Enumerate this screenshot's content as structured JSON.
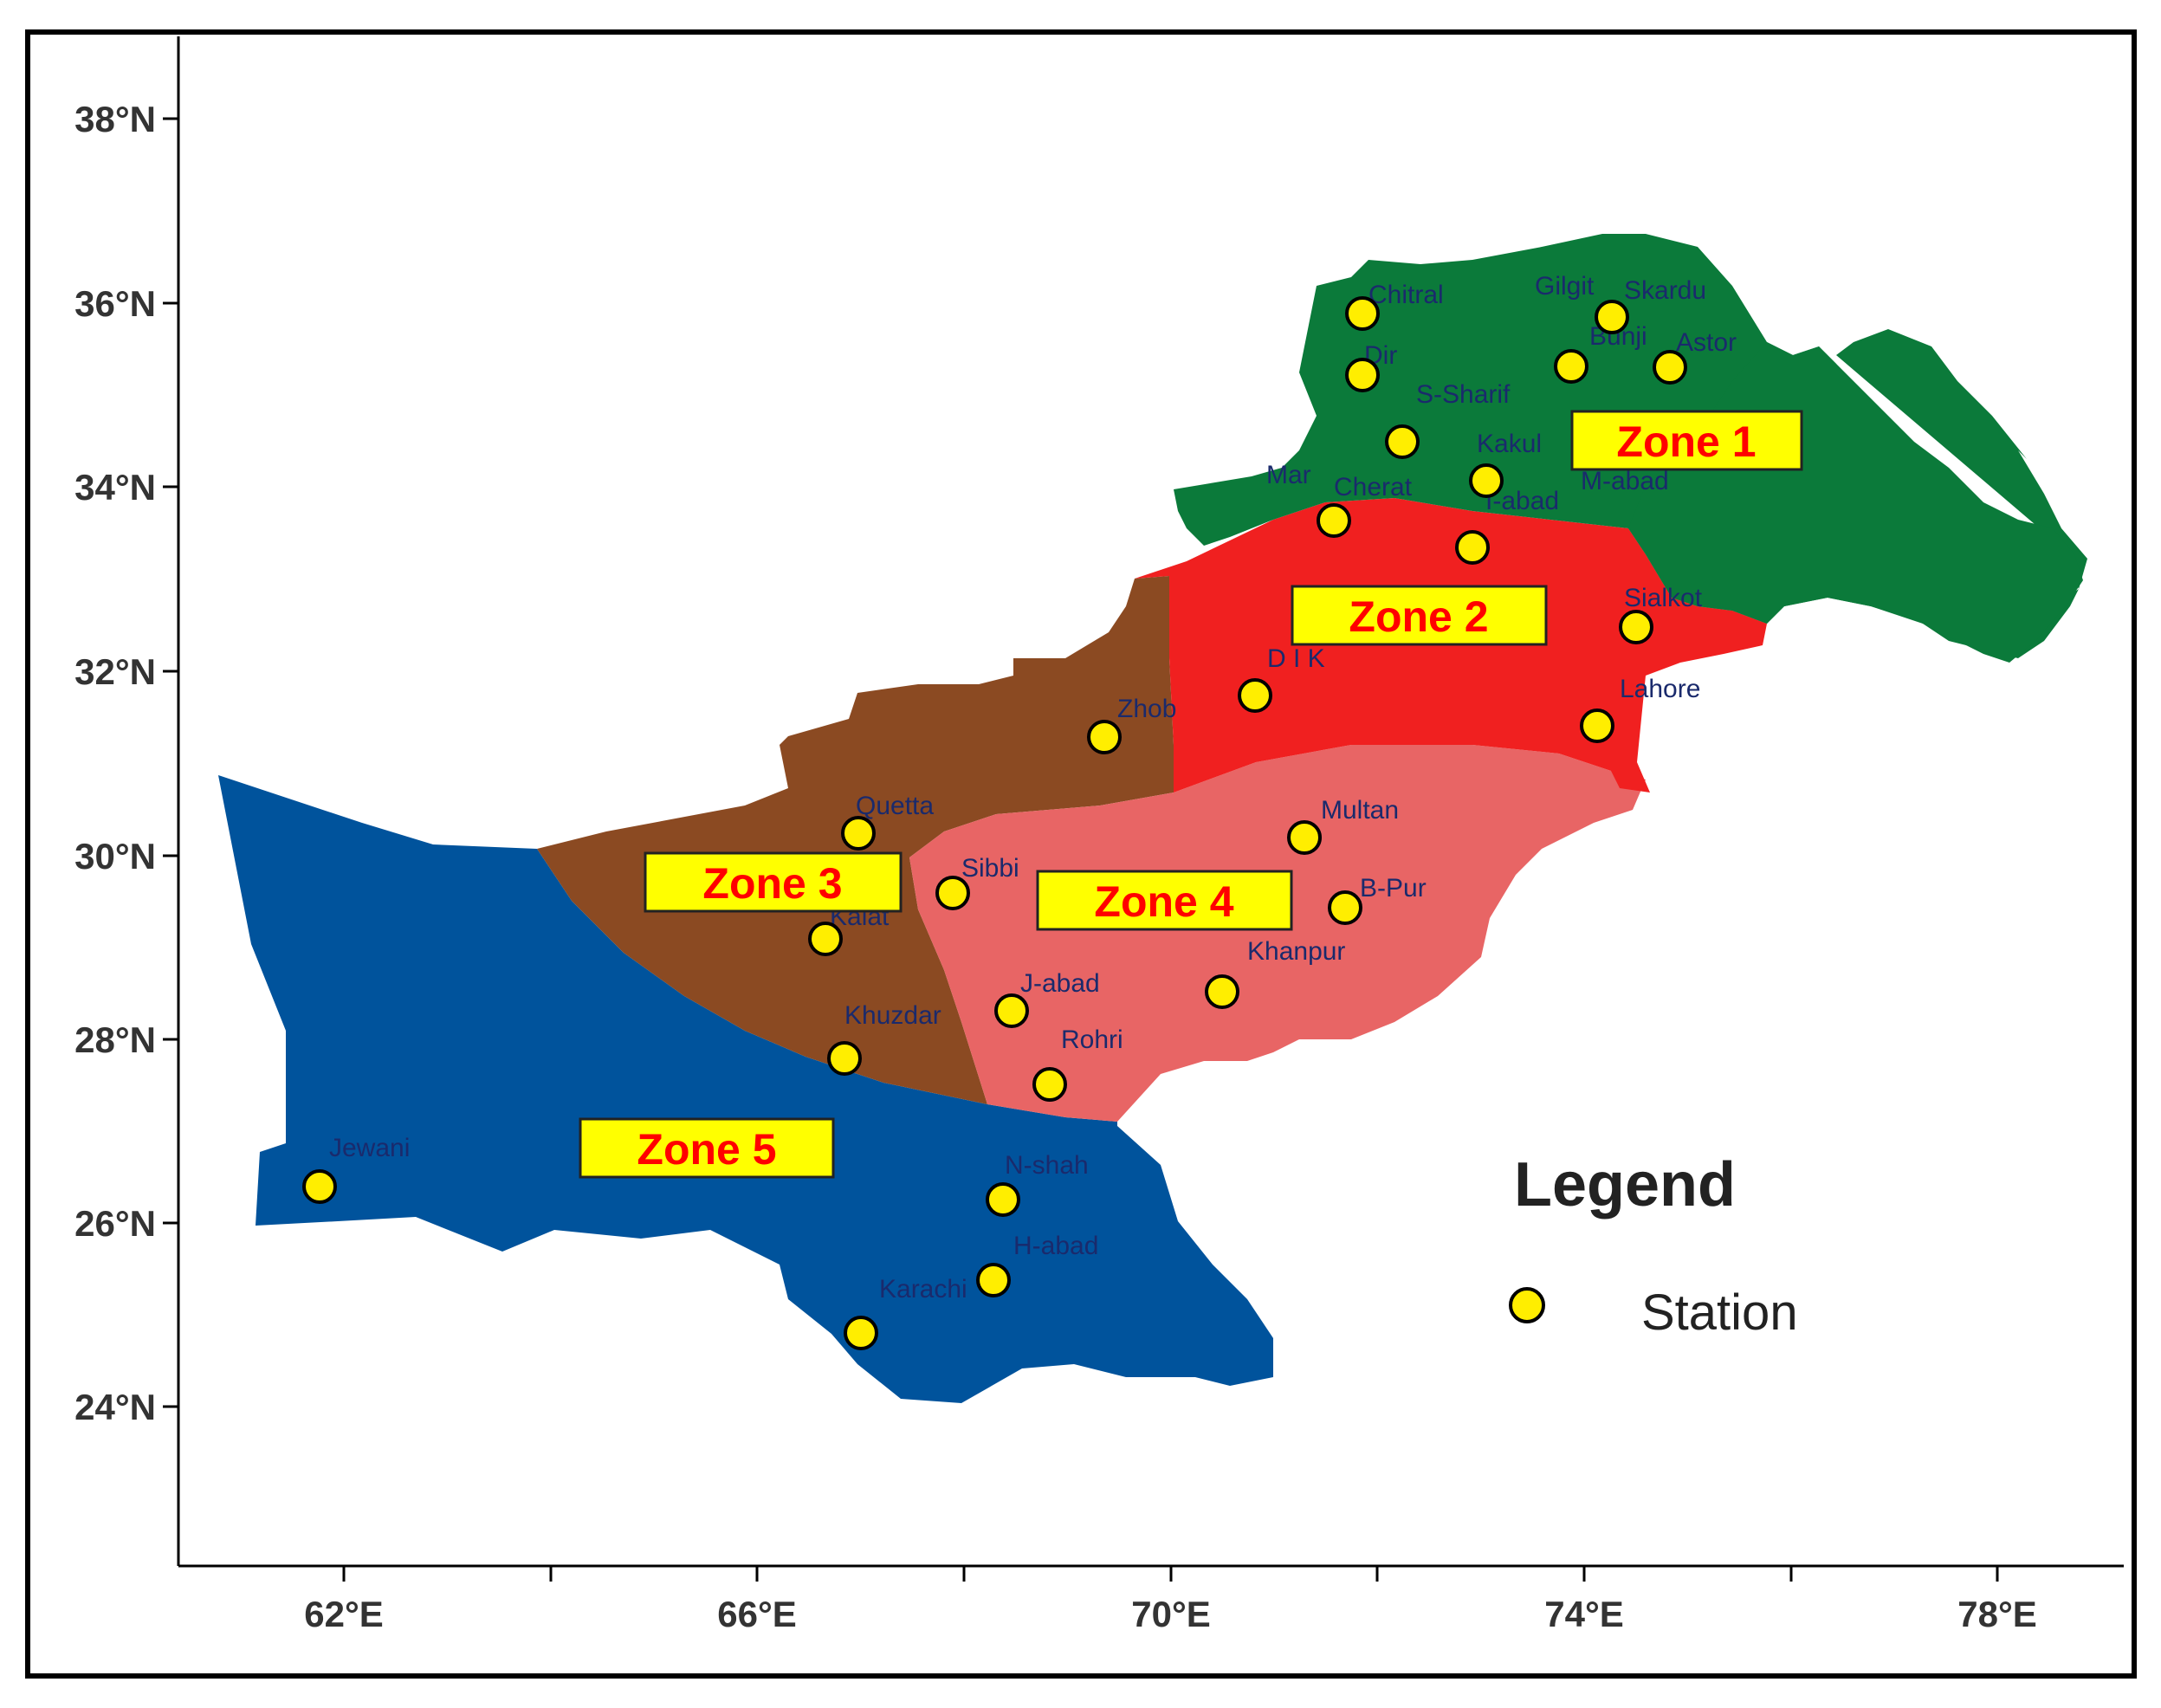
{
  "axes": {
    "y_ticks": [
      "38°N",
      "36°N",
      "34°N",
      "32°N",
      "30°N",
      "28°N",
      "26°N",
      "24°N"
    ],
    "x_ticks": [
      "62°E",
      "66°E",
      "70°E",
      "74°E",
      "78°E"
    ]
  },
  "zones": [
    {
      "label": "Zone 1",
      "color": "#0b7a3a"
    },
    {
      "label": "Zone 2",
      "color": "#f02020"
    },
    {
      "label": "Zone 3",
      "color": "#8b4a22"
    },
    {
      "label": "Zone 4",
      "color": "#e86565"
    },
    {
      "label": "Zone 5",
      "color": "#00539c"
    }
  ],
  "stations": [
    {
      "name": "Chitral"
    },
    {
      "name": "Gilgit"
    },
    {
      "name": "Skardu"
    },
    {
      "name": "Bunji"
    },
    {
      "name": "Astor"
    },
    {
      "name": "Dir"
    },
    {
      "name": "S-Sharif"
    },
    {
      "name": "Kakul"
    },
    {
      "name": "Mar"
    },
    {
      "name": "Cherat"
    },
    {
      "name": "I-abad"
    },
    {
      "name": "M-abad"
    },
    {
      "name": "Sialkot"
    },
    {
      "name": "D I K"
    },
    {
      "name": "Lahore"
    },
    {
      "name": "Zhob"
    },
    {
      "name": "Quetta"
    },
    {
      "name": "Multan"
    },
    {
      "name": "Sibbi"
    },
    {
      "name": "B-Pur"
    },
    {
      "name": "Kalat"
    },
    {
      "name": "Khanpur"
    },
    {
      "name": "J-abad"
    },
    {
      "name": "Khuzdar"
    },
    {
      "name": "Rohri"
    },
    {
      "name": "Jewani"
    },
    {
      "name": "N-shah"
    },
    {
      "name": "H-abad"
    },
    {
      "name": "Karachi"
    }
  ],
  "legend": {
    "title": "Legend",
    "station_label": "Station",
    "marker_color": "#ffee00"
  }
}
